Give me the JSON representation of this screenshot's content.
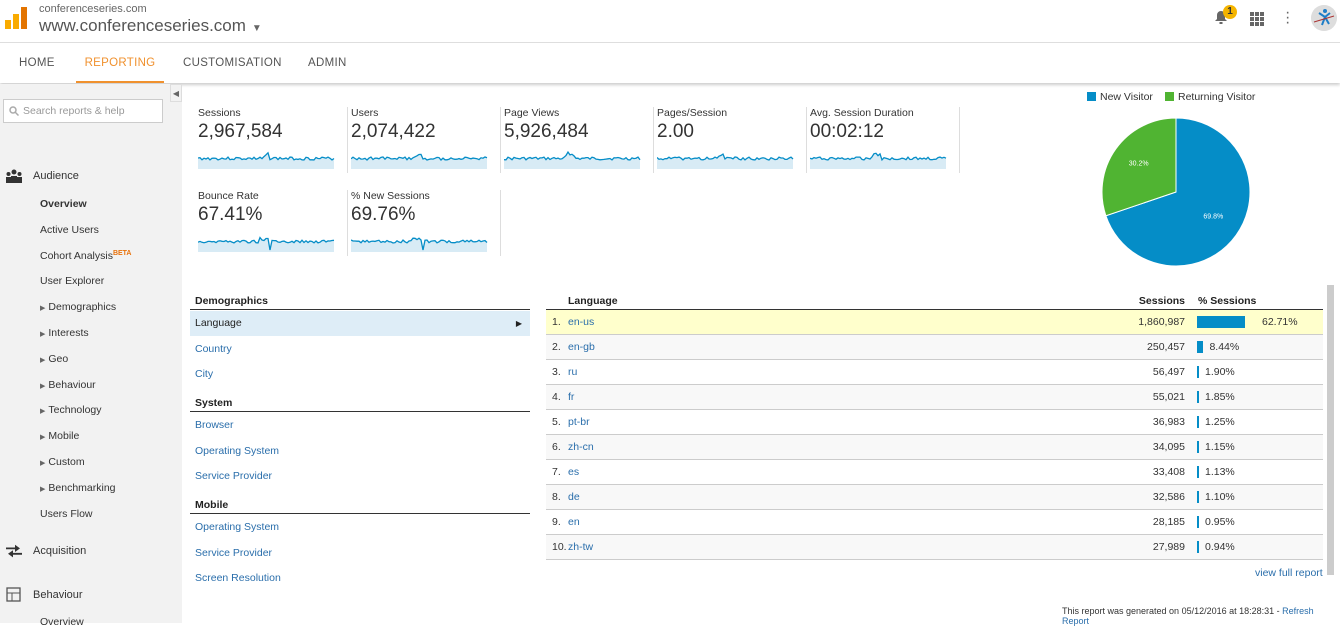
{
  "header": {
    "account_small": "conferenceseries.com",
    "property": "www.conferenceseries.com",
    "notification_count": "1"
  },
  "nav": {
    "tabs": [
      "HOME",
      "REPORTING",
      "CUSTOMISATION",
      "ADMIN"
    ],
    "active": "REPORTING"
  },
  "sidebar": {
    "search_placeholder": "Search reports & help",
    "audience": "Audience",
    "items": [
      "Overview",
      "Active Users",
      "Cohort Analysis",
      "User Explorer",
      "Demographics",
      "Interests",
      "Geo",
      "Behaviour",
      "Technology",
      "Mobile",
      "Custom",
      "Benchmarking",
      "Users Flow"
    ],
    "beta": "BETA",
    "acquisition": "Acquisition",
    "behaviour": "Behaviour",
    "behaviour_overview": "Overview"
  },
  "metrics": [
    {
      "label": "Sessions",
      "value": "2,967,584"
    },
    {
      "label": "Users",
      "value": "2,074,422"
    },
    {
      "label": "Page Views",
      "value": "5,926,484"
    },
    {
      "label": "Pages/Session",
      "value": "2.00"
    },
    {
      "label": "Avg. Session Duration",
      "value": "00:02:12"
    },
    {
      "label": "Bounce Rate",
      "value": "67.41%"
    },
    {
      "label": "% New Sessions",
      "value": "69.76%"
    }
  ],
  "chart_data": {
    "type": "pie",
    "series": [
      {
        "name": "New Visitor",
        "value": 69.8,
        "label": "69.8%",
        "color": "#058dc7"
      },
      {
        "name": "Returning Visitor",
        "value": 30.2,
        "label": "30.2%",
        "color": "#50b432"
      }
    ],
    "legend": "top"
  },
  "dimensions": {
    "groups": [
      {
        "title": "Demographics",
        "items": [
          "Language",
          "Country",
          "City"
        ]
      },
      {
        "title": "System",
        "items": [
          "Browser",
          "Operating System",
          "Service Provider"
        ]
      },
      {
        "title": "Mobile",
        "items": [
          "Operating System",
          "Service Provider",
          "Screen Resolution"
        ]
      }
    ],
    "selected": "Language"
  },
  "table": {
    "headers": [
      "Language",
      "Sessions",
      "% Sessions"
    ],
    "rows": [
      {
        "n": "1.",
        "lang": "en-us",
        "sessions": "1,860,987",
        "pct": "62.71%",
        "v": 62.71
      },
      {
        "n": "2.",
        "lang": "en-gb",
        "sessions": "250,457",
        "pct": "8.44%",
        "v": 8.44
      },
      {
        "n": "3.",
        "lang": "ru",
        "sessions": "56,497",
        "pct": "1.90%",
        "v": 1.9
      },
      {
        "n": "4.",
        "lang": "fr",
        "sessions": "55,021",
        "pct": "1.85%",
        "v": 1.85
      },
      {
        "n": "5.",
        "lang": "pt-br",
        "sessions": "36,983",
        "pct": "1.25%",
        "v": 1.25
      },
      {
        "n": "6.",
        "lang": "zh-cn",
        "sessions": "34,095",
        "pct": "1.15%",
        "v": 1.15
      },
      {
        "n": "7.",
        "lang": "es",
        "sessions": "33,408",
        "pct": "1.13%",
        "v": 1.13
      },
      {
        "n": "8.",
        "lang": "de",
        "sessions": "32,586",
        "pct": "1.10%",
        "v": 1.1
      },
      {
        "n": "9.",
        "lang": "en",
        "sessions": "28,185",
        "pct": "0.95%",
        "v": 0.95
      },
      {
        "n": "10.",
        "lang": "zh-tw",
        "sessions": "27,989",
        "pct": "0.94%",
        "v": 0.94
      }
    ],
    "view_full": "view full report"
  },
  "footer": {
    "text": "This report was generated on 05/12/2016 at 18:28:31 - ",
    "refresh": "Refresh Report"
  }
}
